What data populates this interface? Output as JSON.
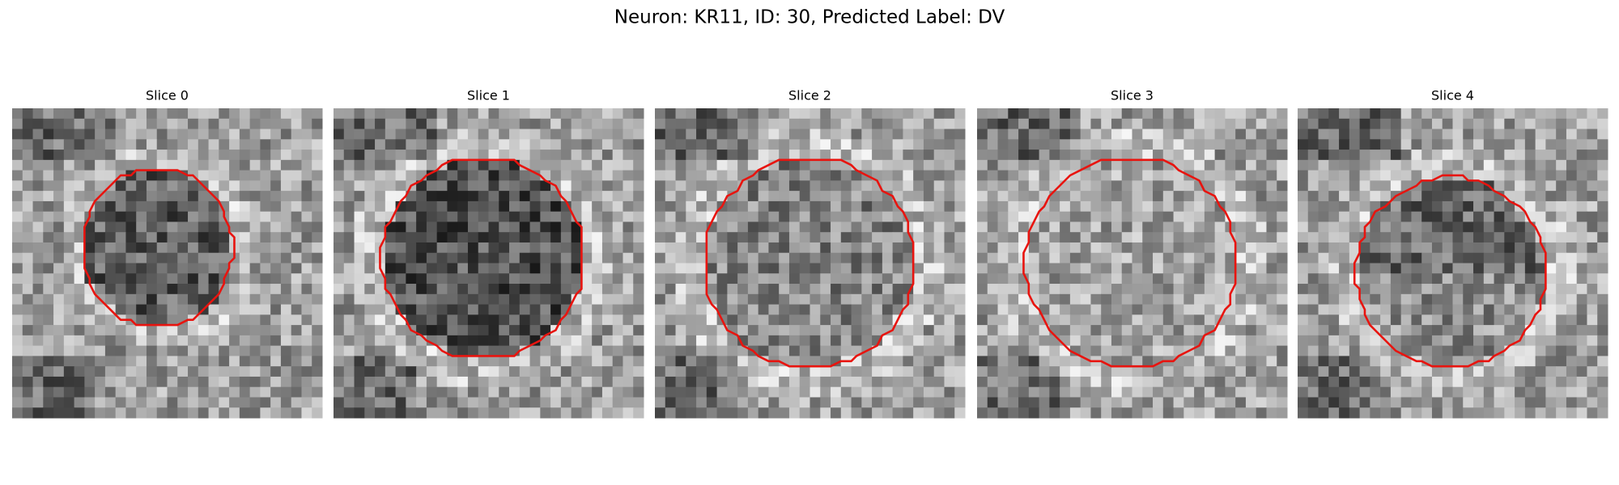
{
  "title": "Neuron: KR11, ID: 30, Predicted Label: DV",
  "panels": [
    {
      "title": "Slice 0"
    },
    {
      "title": "Slice 1"
    },
    {
      "title": "Slice 2"
    },
    {
      "title": "Slice 3"
    },
    {
      "title": "Slice 4"
    }
  ]
}
